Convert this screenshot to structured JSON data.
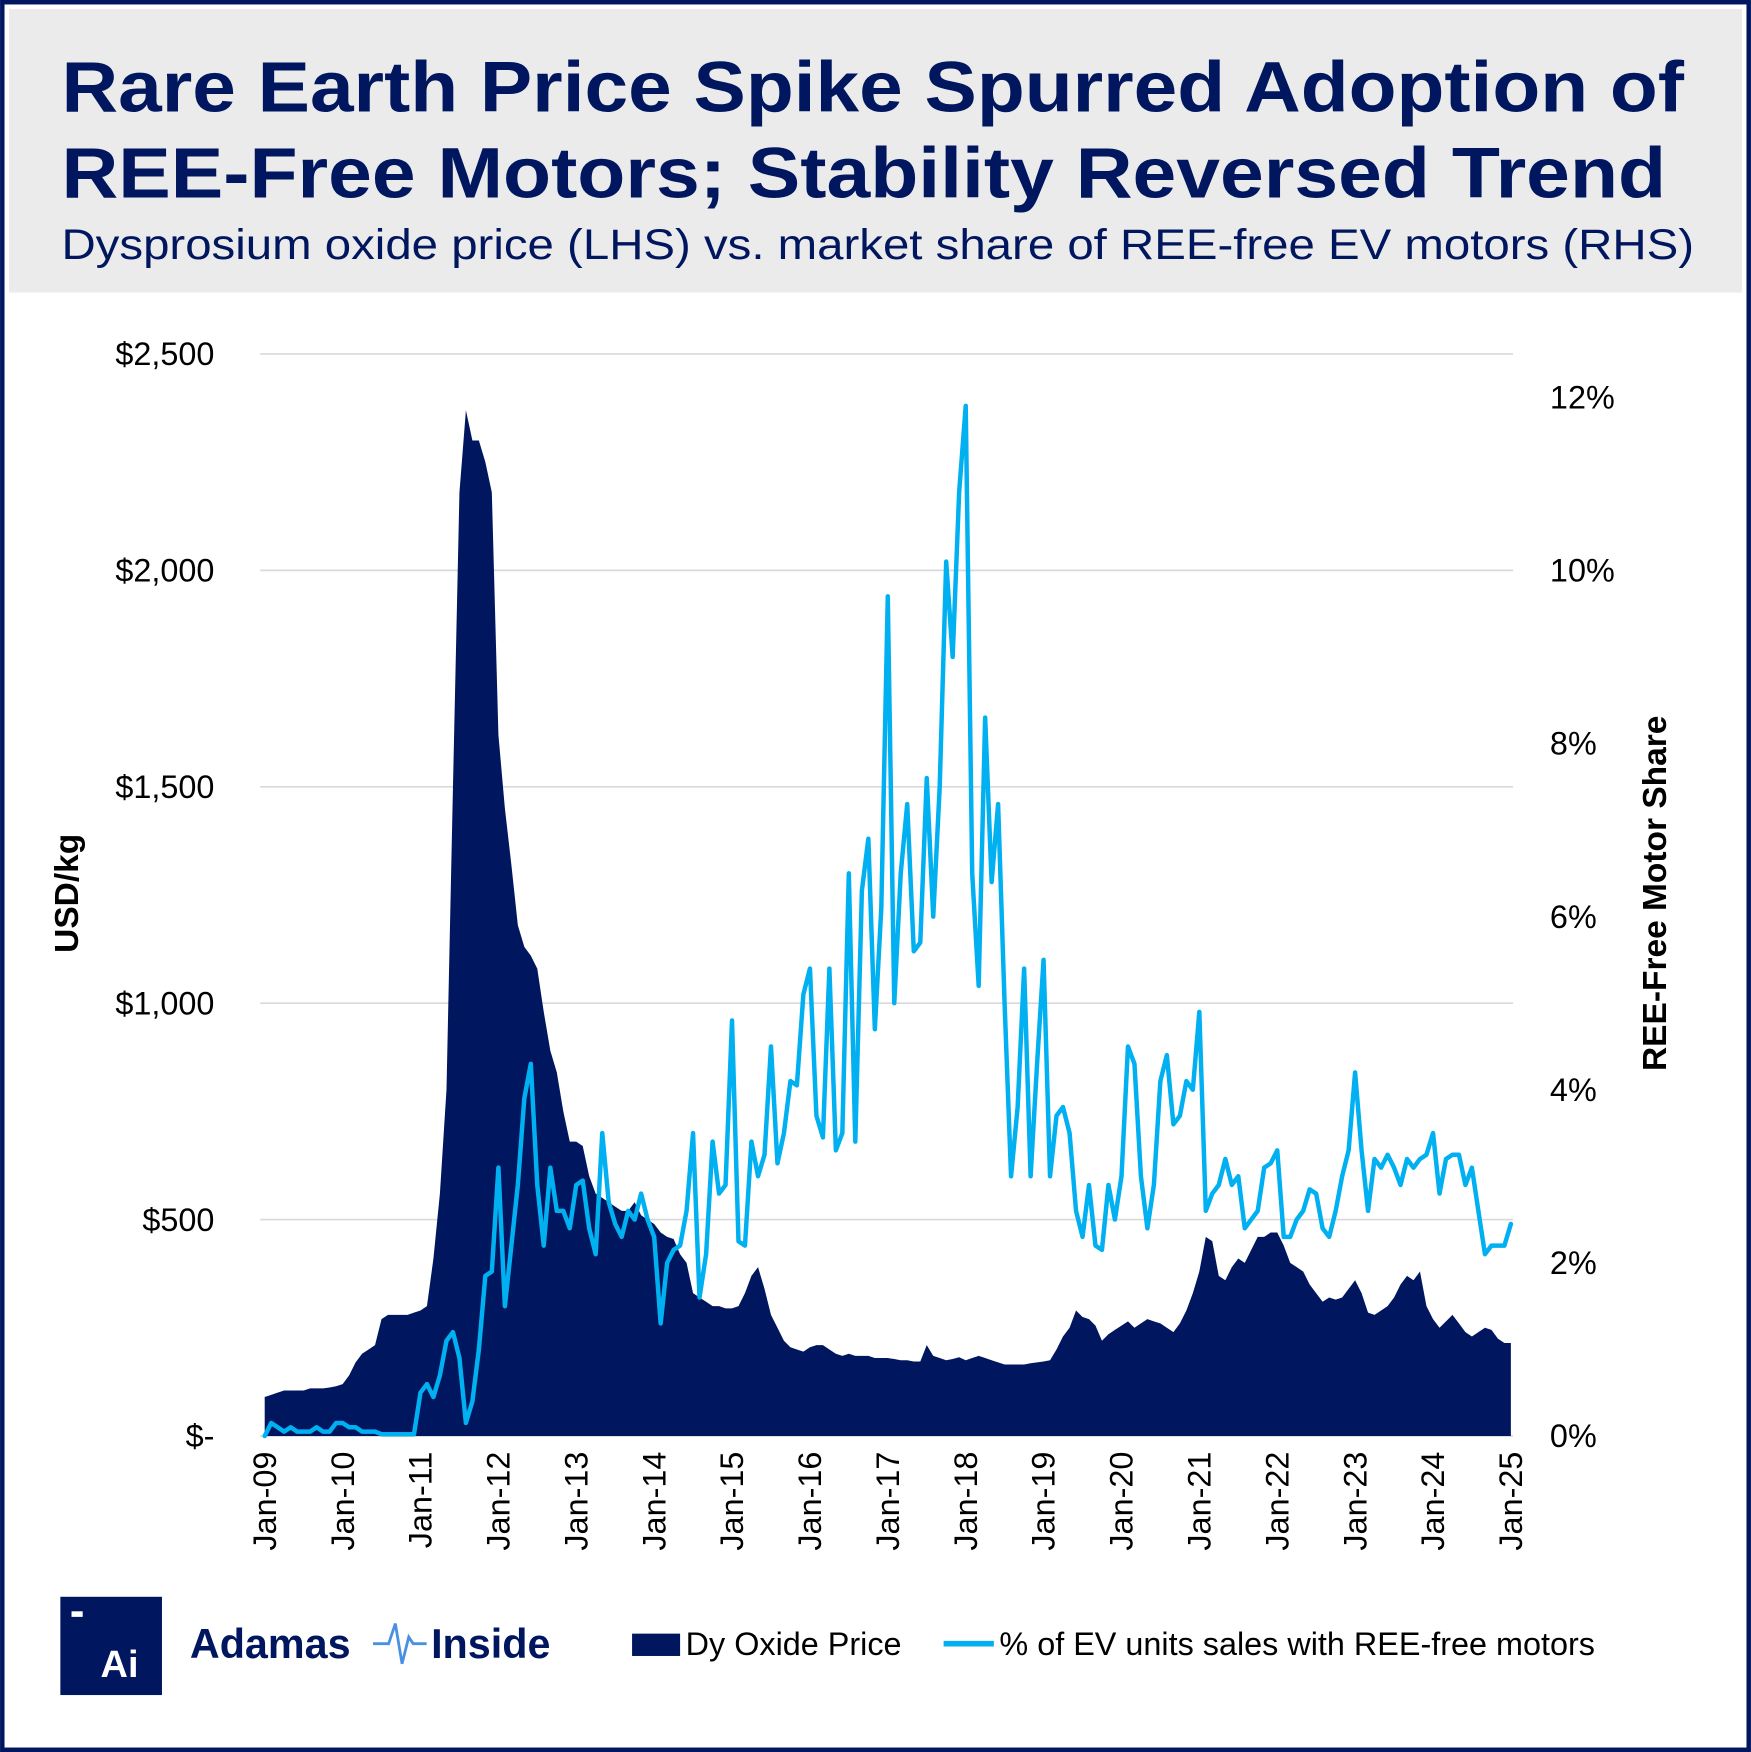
{
  "header": {
    "title_line1": "Rare Earth Price Spike Spurred Adoption of",
    "title_line2": "REE-Free Motors; Stability Reversed Trend",
    "subtitle": "Dysprosium oxide price (LHS) vs. market share of REE-free EV motors (RHS)"
  },
  "logo": {
    "mark": "Ai",
    "text_left": "Adamas",
    "text_right": "Inside"
  },
  "colors": {
    "navy": "#00165e",
    "cyan": "#00b0f0",
    "header_bg": "#ebebeb",
    "grid": "#d9d9d9",
    "logo_pulse": "#4a90e2"
  },
  "chart_data": {
    "type": "area+line",
    "x_frequency": "monthly",
    "x_start": "Jan-09",
    "x_end": "Jan-25",
    "xticks": [
      "Jan-09",
      "Jan-10",
      "Jan-11",
      "Jan-12",
      "Jan-13",
      "Jan-14",
      "Jan-15",
      "Jan-16",
      "Jan-17",
      "Jan-18",
      "Jan-19",
      "Jan-20",
      "Jan-21",
      "Jan-22",
      "Jan-23",
      "Jan-24",
      "Jan-25"
    ],
    "ylabel": "USD/kg",
    "ylim": [
      0,
      2500
    ],
    "yticks": [
      "$-",
      "$500",
      "$1,000",
      "$1,500",
      "$2,000",
      "$2,500"
    ],
    "y2label": "REE-Free Motor Share",
    "y2lim": [
      0,
      12.5
    ],
    "y2ticks": [
      "0%",
      "2%",
      "4%",
      "6%",
      "8%",
      "10%",
      "12%"
    ],
    "grid": true,
    "legend_position": "bottom",
    "series": [
      {
        "name": "Dy Oxide Price",
        "type": "area",
        "axis": "left",
        "color": "#00165e",
        "values": [
          90,
          95,
          100,
          105,
          105,
          105,
          105,
          110,
          110,
          110,
          112,
          115,
          120,
          140,
          170,
          190,
          200,
          210,
          270,
          280,
          280,
          280,
          280,
          285,
          290,
          300,
          410,
          560,
          800,
          1500,
          2180,
          2370,
          2300,
          2300,
          2250,
          2180,
          1620,
          1450,
          1320,
          1180,
          1130,
          1110,
          1080,
          980,
          890,
          840,
          750,
          680,
          680,
          670,
          600,
          560,
          550,
          540,
          530,
          520,
          520,
          540,
          510,
          500,
          490,
          470,
          460,
          455,
          420,
          400,
          330,
          320,
          310,
          300,
          300,
          295,
          295,
          300,
          330,
          370,
          390,
          340,
          280,
          250,
          220,
          205,
          200,
          195,
          205,
          210,
          210,
          200,
          190,
          185,
          190,
          185,
          185,
          185,
          180,
          180,
          180,
          178,
          175,
          175,
          172,
          172,
          210,
          185,
          180,
          175,
          178,
          182,
          175,
          180,
          185,
          180,
          175,
          170,
          165,
          165,
          165,
          165,
          168,
          170,
          172,
          175,
          200,
          230,
          250,
          290,
          275,
          270,
          255,
          220,
          235,
          245,
          255,
          265,
          250,
          260,
          270,
          265,
          260,
          250,
          240,
          260,
          290,
          330,
          380,
          460,
          450,
          370,
          360,
          390,
          410,
          400,
          430,
          460,
          460,
          470,
          470,
          440,
          400,
          390,
          380,
          350,
          330,
          310,
          320,
          315,
          320,
          340,
          360,
          330,
          285,
          280,
          290,
          300,
          320,
          350,
          370,
          360,
          380,
          300,
          270,
          250,
          265,
          280,
          260,
          240,
          230,
          240,
          250,
          245,
          225,
          215,
          215
        ]
      },
      {
        "name": "% of EV units sales with REE-free motors",
        "type": "line",
        "axis": "right",
        "color": "#00b0f0",
        "values": [
          0,
          0.15,
          0.1,
          0.05,
          0.1,
          0.05,
          0.05,
          0.05,
          0.1,
          0.05,
          0.05,
          0.15,
          0.15,
          0.1,
          0.1,
          0.05,
          0.05,
          0.05,
          0.02,
          0.02,
          0.02,
          0.02,
          0.02,
          0.02,
          0.5,
          0.6,
          0.45,
          0.7,
          1.1,
          1.2,
          0.9,
          0.15,
          0.4,
          1.0,
          1.85,
          1.9,
          3.1,
          1.5,
          2.2,
          2.9,
          3.9,
          4.3,
          2.9,
          2.2,
          3.1,
          2.6,
          2.6,
          2.4,
          2.9,
          2.95,
          2.4,
          2.1,
          3.5,
          2.7,
          2.45,
          2.3,
          2.6,
          2.5,
          2.8,
          2.5,
          2.3,
          1.3,
          2.0,
          2.15,
          2.2,
          2.6,
          3.5,
          1.6,
          2.1,
          3.4,
          2.8,
          2.9,
          4.8,
          2.25,
          2.2,
          3.4,
          3.0,
          3.25,
          4.5,
          3.15,
          3.5,
          4.1,
          4.05,
          5.1,
          5.4,
          3.7,
          3.45,
          5.4,
          3.3,
          3.5,
          6.5,
          3.4,
          6.3,
          6.9,
          4.7,
          6.1,
          9.7,
          5.0,
          6.5,
          7.3,
          5.6,
          5.7,
          7.6,
          6.0,
          7.5,
          10.1,
          9.0,
          10.9,
          11.9,
          6.5,
          5.2,
          8.3,
          6.4,
          7.3,
          5.0,
          3.0,
          3.8,
          5.4,
          3.0,
          4.3,
          5.5,
          3.0,
          3.7,
          3.8,
          3.5,
          2.6,
          2.3,
          2.9,
          2.2,
          2.15,
          2.9,
          2.5,
          3.0,
          4.5,
          4.3,
          3.0,
          2.4,
          2.9,
          4.1,
          4.4,
          3.6,
          3.7,
          4.1,
          4.0,
          4.9,
          2.6,
          2.8,
          2.9,
          3.2,
          2.9,
          3.0,
          2.4,
          2.5,
          2.6,
          3.1,
          3.15,
          3.3,
          2.3,
          2.3,
          2.5,
          2.6,
          2.85,
          2.8,
          2.4,
          2.3,
          2.6,
          3.0,
          3.3,
          4.2,
          3.3,
          2.6,
          3.2,
          3.1,
          3.25,
          3.1,
          2.9,
          3.2,
          3.1,
          3.2,
          3.25,
          3.5,
          2.8,
          3.2,
          3.25,
          3.25,
          2.9,
          3.1,
          2.6,
          2.1,
          2.2,
          2.2,
          2.2,
          2.45
        ]
      }
    ]
  }
}
